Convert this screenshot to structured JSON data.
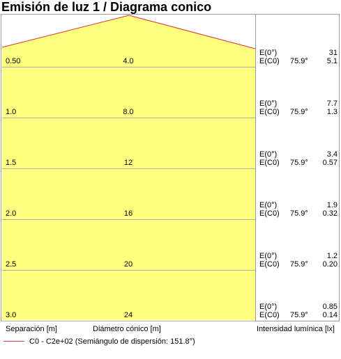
{
  "header": {
    "title": "Emisión de luz 1 / Diagrama conico"
  },
  "rows": [
    {
      "separation": "0.50",
      "diameter": "4.0",
      "e0_label": "E(0°)",
      "e0": "31",
      "ec0_label": "E(C0)",
      "angle": "75.9°",
      "ec0": "5.1"
    },
    {
      "separation": "1.0",
      "diameter": "8.0",
      "e0_label": "E(0°)",
      "e0": "7.7",
      "ec0_label": "E(C0)",
      "angle": "75.9°",
      "ec0": "1.3"
    },
    {
      "separation": "1.5",
      "diameter": "12",
      "e0_label": "E(0°)",
      "e0": "3.4",
      "ec0_label": "E(C0)",
      "angle": "75.9°",
      "ec0": "0.57"
    },
    {
      "separation": "2.0",
      "diameter": "16",
      "e0_label": "E(0°)",
      "e0": "1.9",
      "ec0_label": "E(C0)",
      "angle": "75.9°",
      "ec0": "0.32"
    },
    {
      "separation": "2.5",
      "diameter": "20",
      "e0_label": "E(0°)",
      "e0": "1.2",
      "ec0_label": "E(C0)",
      "angle": "75.9°",
      "ec0": "0.20"
    },
    {
      "separation": "3.0",
      "diameter": "24",
      "e0_label": "E(0°)",
      "e0": "0.85",
      "ec0_label": "E(C0)",
      "angle": "75.9°",
      "ec0": "0.14"
    }
  ],
  "footer": {
    "separation_label": "Separación [m]",
    "diameter_label": "Diámetro cónico [m]",
    "intensity_label": "Intensidad lumínica [lx]"
  },
  "legend": {
    "text": "C0 - C2e+02 (Semiángulo de dispersión: 151.8°)"
  }
}
